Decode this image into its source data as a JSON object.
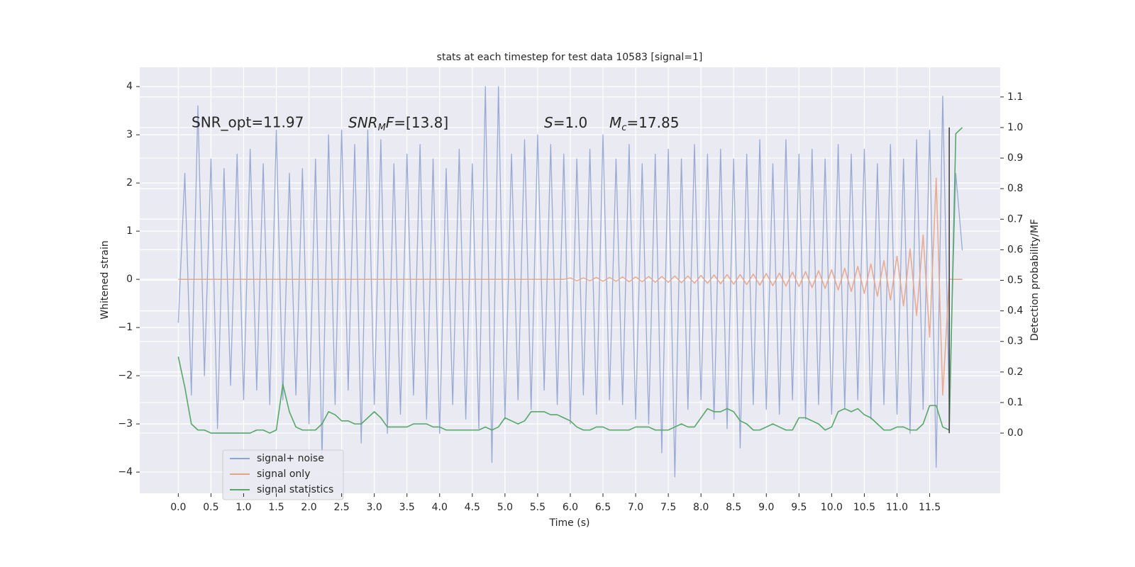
{
  "chart_data": {
    "type": "line",
    "title": "stats at each timestep for test data 10583 [signal=1]",
    "xlabel": "Time (s)",
    "ylabel": "Whitened strain",
    "y2label": "Detection probability/MF",
    "grid": true,
    "legend": "lower left",
    "xlim": [
      -0.59,
      12.58
    ],
    "ylim": [
      -4.44,
      4.4
    ],
    "y2lim": [
      -0.197,
      1.197
    ],
    "xticks": [
      {
        "value": 0,
        "label": "0.0"
      },
      {
        "value": 0.5,
        "label": "0.5"
      },
      {
        "value": 1,
        "label": "1.0"
      },
      {
        "value": 1.5,
        "label": "1.5"
      },
      {
        "value": 2,
        "label": "2.0"
      },
      {
        "value": 2.5,
        "label": "2.5"
      },
      {
        "value": 3,
        "label": "3.0"
      },
      {
        "value": 3.5,
        "label": "3.5"
      },
      {
        "value": 4,
        "label": "4.0"
      },
      {
        "value": 4.5,
        "label": "4.5"
      },
      {
        "value": 5,
        "label": "5.0"
      },
      {
        "value": 5.5,
        "label": "5.5"
      },
      {
        "value": 6,
        "label": "6.0"
      },
      {
        "value": 6.5,
        "label": "6.5"
      },
      {
        "value": 7,
        "label": "7.0"
      },
      {
        "value": 7.5,
        "label": "7.5"
      },
      {
        "value": 8,
        "label": "8.0"
      },
      {
        "value": 8.5,
        "label": "8.5"
      },
      {
        "value": 9,
        "label": "9.0"
      },
      {
        "value": 9.5,
        "label": "9.5"
      },
      {
        "value": 10,
        "label": "10.0"
      },
      {
        "value": 10.5,
        "label": "10.5"
      },
      {
        "value": 11,
        "label": "11.0"
      },
      {
        "value": 11.5,
        "label": "11.5"
      }
    ],
    "yticks": [
      {
        "value": -4,
        "label": "−4"
      },
      {
        "value": -3,
        "label": "−3"
      },
      {
        "value": -2,
        "label": "−2"
      },
      {
        "value": -1,
        "label": "−1"
      },
      0,
      1,
      2,
      3,
      4
    ],
    "y2ticks": [
      {
        "value": 0,
        "label": "0.0"
      },
      {
        "value": 0.1,
        "label": "0.1"
      },
      {
        "value": 0.2,
        "label": "0.2"
      },
      {
        "value": 0.3,
        "label": "0.3"
      },
      {
        "value": 0.4,
        "label": "0.4"
      },
      {
        "value": 0.5,
        "label": "0.5"
      },
      {
        "value": 0.6,
        "label": "0.6"
      },
      {
        "value": 0.7,
        "label": "0.7"
      },
      {
        "value": 0.8,
        "label": "0.8"
      },
      {
        "value": 0.9,
        "label": "0.9"
      },
      {
        "value": 1,
        "label": "1.0"
      },
      {
        "value": 1.1,
        "label": "1.1"
      }
    ],
    "annotations": [
      {
        "text": "SNR_opt=11.97"
      },
      {
        "parts": [
          "SNR",
          "M",
          "F",
          "=[13.8]"
        ]
      },
      {
        "parts": [
          "S",
          "=1.0"
        ]
      },
      {
        "parts": [
          "M",
          "c",
          "=17.85"
        ]
      }
    ],
    "vlines": [
      {
        "x": 11.8,
        "ymin": 0,
        "ymax": 1,
        "axis": "y2",
        "color": "#444444"
      }
    ],
    "x": [
      0,
      0.1,
      0.2,
      0.3,
      0.4,
      0.5,
      0.6,
      0.7,
      0.8,
      0.9,
      1,
      1.1,
      1.2,
      1.3,
      1.4,
      1.5,
      1.6,
      1.7,
      1.8,
      1.9,
      2,
      2.1,
      2.2,
      2.3,
      2.4,
      2.5,
      2.6,
      2.7,
      2.8,
      2.9,
      3,
      3.1,
      3.2,
      3.3,
      3.4,
      3.5,
      3.6,
      3.7,
      3.8,
      3.9,
      4,
      4.1,
      4.2,
      4.3,
      4.4,
      4.5,
      4.6,
      4.7,
      4.8,
      4.9,
      5,
      5.1,
      5.2,
      5.3,
      5.4,
      5.5,
      5.6,
      5.7,
      5.8,
      5.9,
      6,
      6.1,
      6.2,
      6.3,
      6.4,
      6.5,
      6.6,
      6.7,
      6.8,
      6.9,
      7,
      7.1,
      7.2,
      7.3,
      7.4,
      7.5,
      7.6,
      7.7,
      7.8,
      7.9,
      8,
      8.1,
      8.2,
      8.3,
      8.4,
      8.5,
      8.6,
      8.7,
      8.8,
      8.9,
      9,
      9.1,
      9.2,
      9.3,
      9.4,
      9.5,
      9.6,
      9.7,
      9.8,
      9.9,
      10,
      10.1,
      10.2,
      10.3,
      10.4,
      10.5,
      10.6,
      10.7,
      10.8,
      10.9,
      11,
      11.1,
      11.2,
      11.3,
      11.4,
      11.5,
      11.6,
      11.7,
      11.8,
      11.9,
      12
    ],
    "series": [
      {
        "name": "signal+ noise",
        "color": "#8fa3cf",
        "values": [
          -0.9,
          2.2,
          -2.4,
          3.6,
          -2.0,
          2.5,
          -3.1,
          2.3,
          -2.2,
          2.6,
          -2.5,
          2.7,
          -2.3,
          2.4,
          -2.6,
          3.1,
          -2.5,
          2.2,
          -2.4,
          2.3,
          -3.0,
          2.5,
          -3.7,
          3.0,
          -2.6,
          3.1,
          -2.3,
          2.8,
          -3.4,
          3.1,
          -2.6,
          2.9,
          -3.2,
          2.4,
          -2.8,
          2.6,
          -2.4,
          2.8,
          -2.9,
          2.5,
          -3.2,
          2.3,
          -2.6,
          2.7,
          -2.9,
          2.4,
          -3.1,
          4.0,
          -3.8,
          4.0,
          -2.9,
          2.6,
          -2.5,
          2.9,
          -2.7,
          3.0,
          -2.3,
          2.8,
          -2.6,
          2.6,
          -3.0,
          2.5,
          -2.4,
          2.7,
          -2.8,
          3.0,
          -2.5,
          2.5,
          -2.6,
          2.8,
          -2.9,
          2.4,
          -3.0,
          2.6,
          -3.6,
          2.7,
          -4.1,
          2.5,
          -2.7,
          2.8,
          -2.5,
          2.6,
          -2.9,
          2.7,
          -3.1,
          2.5,
          -3.5,
          2.6,
          -2.6,
          2.9,
          -2.7,
          2.4,
          -2.8,
          2.9,
          -2.5,
          2.6,
          -2.9,
          2.7,
          -2.6,
          2.5,
          -2.8,
          2.8,
          -2.7,
          2.6,
          -2.5,
          2.7,
          -2.9,
          2.4,
          -2.6,
          2.8,
          -2.8,
          2.5,
          -3.2,
          2.9,
          -2.7,
          3.1,
          -3.9,
          3.8,
          -2.6,
          2.2,
          0.6
        ]
      },
      {
        "name": "signal only",
        "color": "#e8a48a",
        "values": [
          0,
          0,
          0,
          0,
          0,
          0,
          0,
          0,
          0,
          0,
          0,
          0,
          0,
          0,
          0,
          0,
          0,
          0,
          0,
          0,
          0,
          0,
          0,
          0,
          0,
          0,
          0,
          0,
          0,
          0,
          0,
          0,
          0,
          0,
          0,
          0,
          0,
          0,
          0,
          0,
          0,
          0,
          0,
          0,
          0,
          0,
          0,
          0,
          0,
          0,
          0,
          0,
          0,
          0,
          0,
          0,
          0,
          0,
          0,
          0,
          0.03,
          -0.03,
          0.03,
          -0.03,
          0.04,
          -0.04,
          0.04,
          -0.04,
          0.05,
          -0.05,
          0.05,
          -0.05,
          0.06,
          -0.06,
          0.06,
          -0.06,
          0.07,
          -0.07,
          0.07,
          -0.08,
          0.08,
          -0.08,
          0.09,
          -0.09,
          0.1,
          -0.1,
          0.1,
          -0.11,
          0.11,
          -0.12,
          0.12,
          -0.13,
          0.13,
          -0.14,
          0.15,
          -0.15,
          0.16,
          -0.17,
          0.18,
          -0.19,
          0.2,
          -0.22,
          0.23,
          -0.25,
          0.27,
          -0.29,
          0.32,
          -0.35,
          0.39,
          -0.43,
          0.48,
          -0.55,
          0.63,
          -0.75,
          0.92,
          -1.2,
          2.1,
          -2.4,
          0,
          0,
          0
        ]
      },
      {
        "name": "signal statistics",
        "color": "#55a868",
        "axis": "y2",
        "values": [
          0.25,
          0.15,
          0.03,
          0.01,
          0.01,
          0,
          0,
          0,
          0,
          0,
          0,
          0,
          0.01,
          0.01,
          0,
          0.01,
          0.16,
          0.07,
          0.02,
          0.01,
          0.01,
          0.01,
          0.03,
          0.07,
          0.06,
          0.04,
          0.04,
          0.03,
          0.03,
          0.05,
          0.07,
          0.05,
          0.02,
          0.02,
          0.02,
          0.02,
          0.03,
          0.03,
          0.03,
          0.02,
          0.02,
          0.01,
          0.01,
          0.01,
          0.01,
          0.01,
          0.01,
          0.02,
          0.01,
          0.02,
          0.05,
          0.04,
          0.03,
          0.04,
          0.07,
          0.07,
          0.07,
          0.06,
          0.06,
          0.05,
          0.04,
          0.02,
          0.01,
          0.01,
          0.02,
          0.02,
          0.01,
          0.01,
          0.01,
          0.01,
          0.02,
          0.02,
          0.02,
          0.01,
          0.01,
          0.01,
          0.02,
          0.03,
          0.02,
          0.02,
          0.05,
          0.08,
          0.07,
          0.07,
          0.08,
          0.07,
          0.04,
          0.03,
          0.01,
          0.01,
          0.02,
          0.03,
          0.02,
          0.01,
          0.01,
          0.05,
          0.05,
          0.04,
          0.03,
          0.01,
          0.02,
          0.07,
          0.08,
          0.07,
          0.08,
          0.06,
          0.05,
          0.03,
          0.01,
          0.01,
          0.02,
          0.02,
          0.01,
          0.01,
          0.03,
          0.09,
          0.09,
          0.02,
          0.01,
          0.98,
          1.0
        ]
      }
    ]
  }
}
